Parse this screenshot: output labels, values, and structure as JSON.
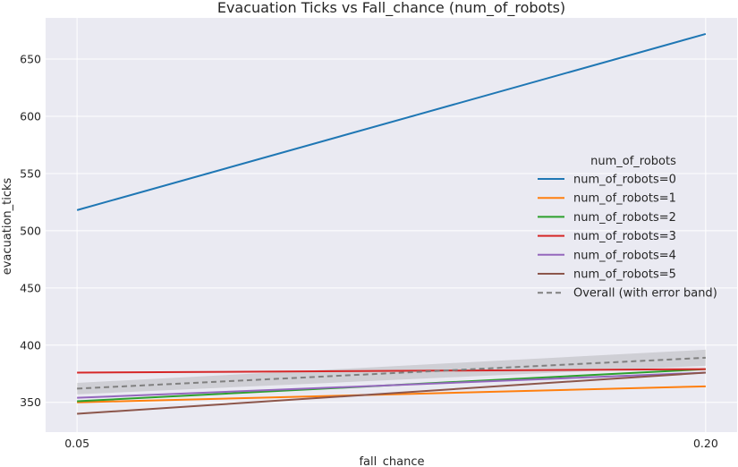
{
  "chart_data": {
    "type": "line",
    "title": "Evacuation Ticks vs Fall_chance (num_of_robots)",
    "xlabel": "fall_chance",
    "ylabel": "evacuation_ticks",
    "x": [
      0.05,
      0.2
    ],
    "x_tick_labels": [
      "0.05",
      "0.20"
    ],
    "xlim": [
      0.0425,
      0.2075
    ],
    "y_ticks": [
      350,
      400,
      450,
      500,
      550,
      600,
      650
    ],
    "ylim": [
      324,
      686
    ],
    "grid": true,
    "legend": {
      "title": "num_of_robots",
      "placement": "center-right"
    },
    "series": [
      {
        "name": "num_of_robots=0",
        "color": "#1f77b4",
        "values": [
          518,
          672
        ]
      },
      {
        "name": "num_of_robots=1",
        "color": "#ff7f0e",
        "values": [
          350,
          364
        ]
      },
      {
        "name": "num_of_robots=2",
        "color": "#2ca02c",
        "values": [
          351,
          379
        ]
      },
      {
        "name": "num_of_robots=3",
        "color": "#d62728",
        "values": [
          376,
          379
        ]
      },
      {
        "name": "num_of_robots=4",
        "color": "#9467bd",
        "values": [
          354,
          376
        ]
      },
      {
        "name": "num_of_robots=5",
        "color": "#8c564b",
        "values": [
          340,
          376
        ]
      }
    ],
    "overall": {
      "name": "Overall (with error band)",
      "color": "#808080",
      "values": [
        362,
        389
      ],
      "band_lower": [
        357,
        382
      ],
      "band_upper": [
        367,
        396
      ]
    }
  }
}
